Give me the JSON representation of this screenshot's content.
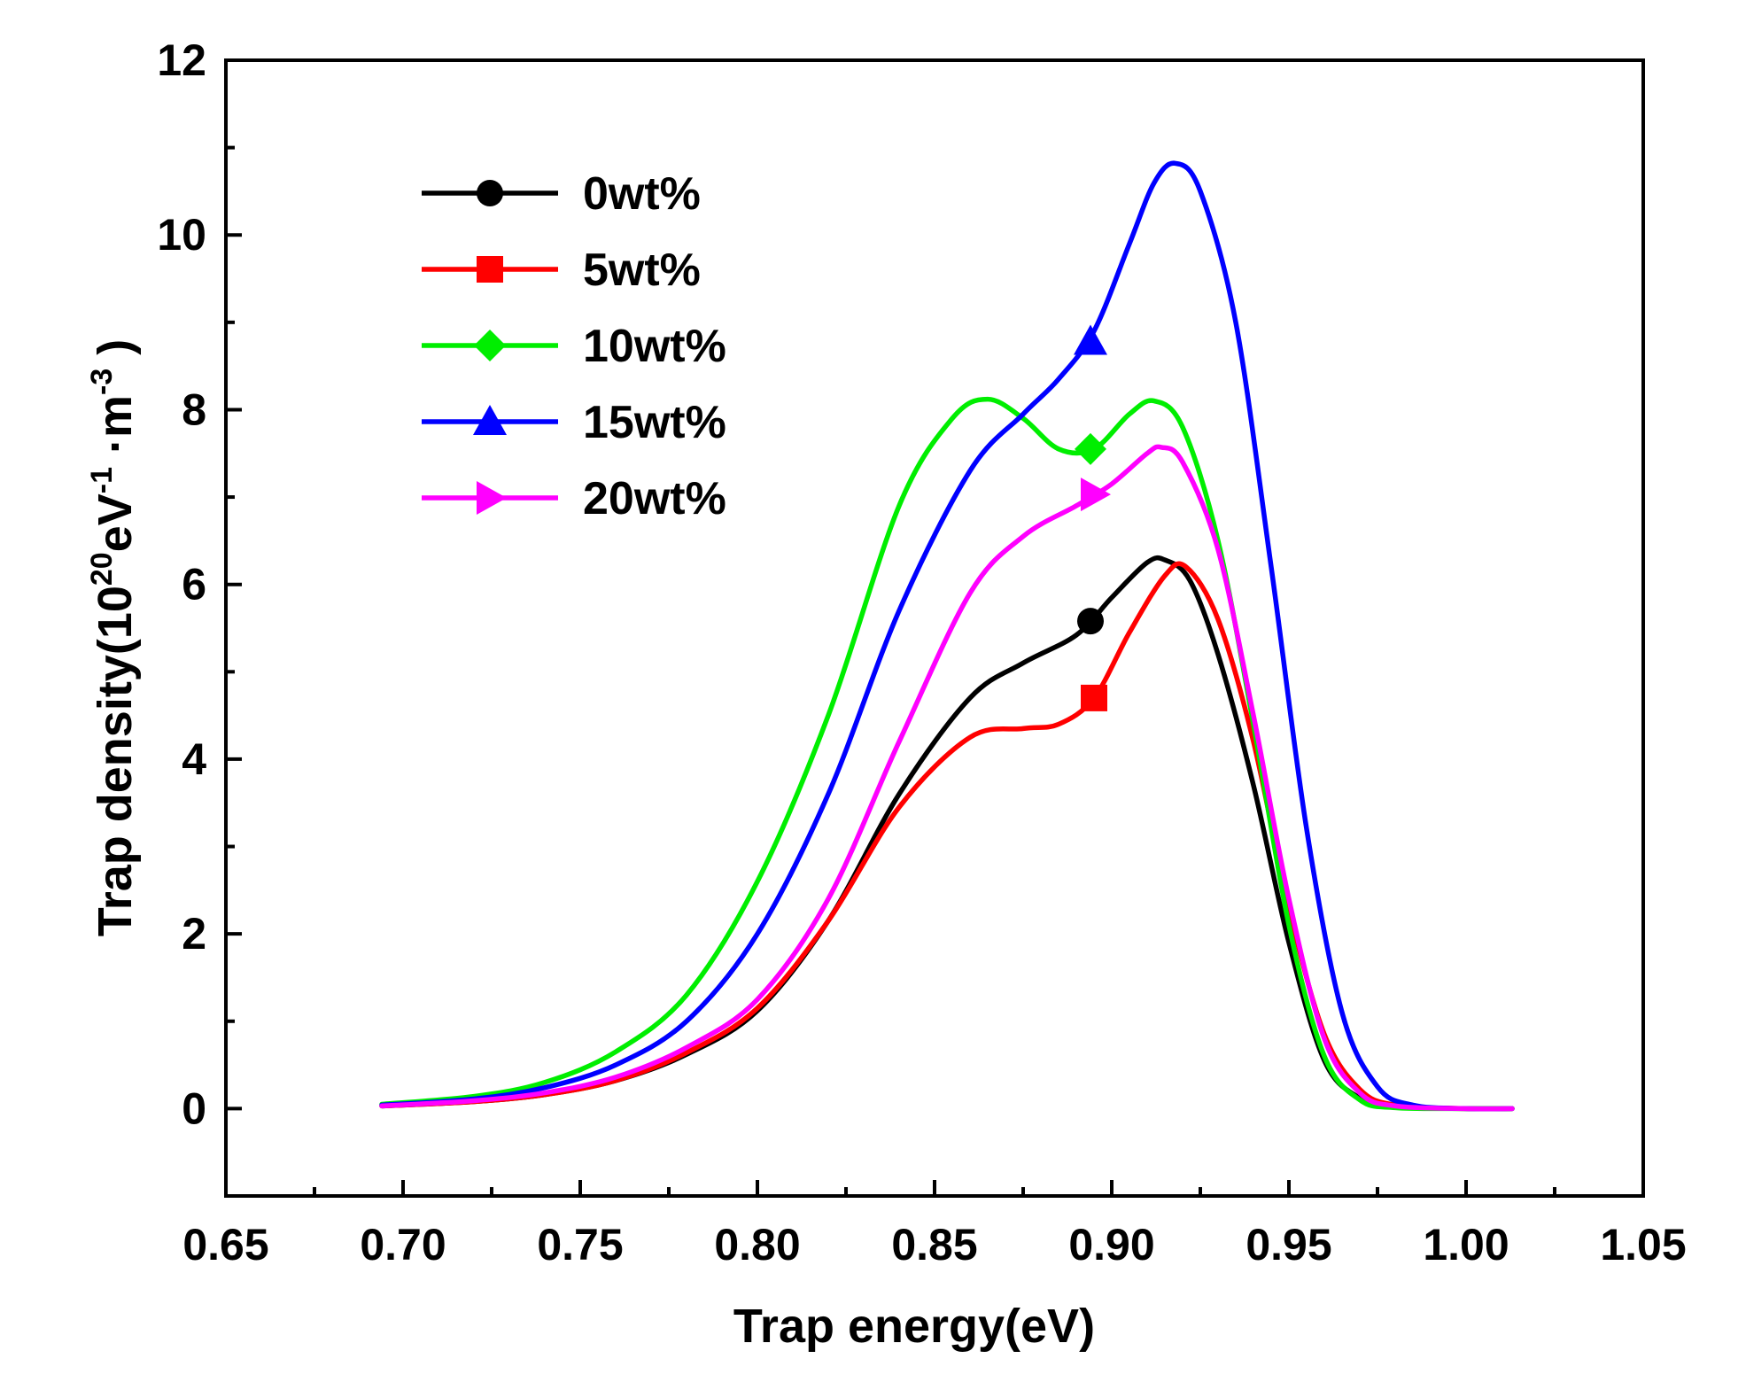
{
  "chart_data": {
    "type": "line",
    "xlabel": "Trap energy(eV)",
    "ylabel": {
      "prefix": "Trap density(10",
      "sup1": "20",
      "mid1": "eV",
      "sup2": "-1",
      "mid2": " ·m",
      "sup3": "-3",
      "suffix": " )"
    },
    "xlim": [
      0.65,
      1.05
    ],
    "ylim": [
      -1,
      12
    ],
    "x_ticks": [
      "0.65",
      "0.70",
      "0.75",
      "0.80",
      "0.85",
      "0.90",
      "0.95",
      "1.00",
      "1.05"
    ],
    "y_ticks": [
      "0",
      "2",
      "4",
      "6",
      "8",
      "10",
      "12"
    ],
    "legend_position": "top-left",
    "series": [
      {
        "name": "0wt%",
        "color": "#000000",
        "marker": "circle",
        "marker_at": [
          0.894,
          5.58
        ],
        "points": [
          [
            0.694,
            0.03
          ],
          [
            0.72,
            0.08
          ],
          [
            0.74,
            0.16
          ],
          [
            0.76,
            0.32
          ],
          [
            0.78,
            0.62
          ],
          [
            0.8,
            1.12
          ],
          [
            0.82,
            2.15
          ],
          [
            0.84,
            3.6
          ],
          [
            0.86,
            4.7
          ],
          [
            0.875,
            5.1
          ],
          [
            0.89,
            5.42
          ],
          [
            0.9,
            5.85
          ],
          [
            0.91,
            6.25
          ],
          [
            0.915,
            6.28
          ],
          [
            0.922,
            6.05
          ],
          [
            0.93,
            5.2
          ],
          [
            0.94,
            3.7
          ],
          [
            0.95,
            1.9
          ],
          [
            0.96,
            0.55
          ],
          [
            0.97,
            0.12
          ],
          [
            0.98,
            0.02
          ],
          [
            1.0,
            0.0
          ],
          [
            1.013,
            0.0
          ]
        ]
      },
      {
        "name": "5wt%",
        "color": "#ff0000",
        "marker": "square",
        "marker_at": [
          0.895,
          4.7
        ],
        "points": [
          [
            0.694,
            0.03
          ],
          [
            0.72,
            0.08
          ],
          [
            0.74,
            0.16
          ],
          [
            0.76,
            0.32
          ],
          [
            0.78,
            0.64
          ],
          [
            0.8,
            1.15
          ],
          [
            0.82,
            2.15
          ],
          [
            0.84,
            3.45
          ],
          [
            0.86,
            4.25
          ],
          [
            0.875,
            4.35
          ],
          [
            0.885,
            4.4
          ],
          [
            0.895,
            4.7
          ],
          [
            0.905,
            5.45
          ],
          [
            0.915,
            6.1
          ],
          [
            0.921,
            6.2
          ],
          [
            0.93,
            5.6
          ],
          [
            0.94,
            4.2
          ],
          [
            0.95,
            2.3
          ],
          [
            0.96,
            0.85
          ],
          [
            0.97,
            0.22
          ],
          [
            0.98,
            0.04
          ],
          [
            1.0,
            0.0
          ],
          [
            1.013,
            0.0
          ]
        ]
      },
      {
        "name": "10wt%",
        "color": "#00ee00",
        "marker": "diamond",
        "marker_at": [
          0.894,
          7.55
        ],
        "points": [
          [
            0.694,
            0.05
          ],
          [
            0.72,
            0.14
          ],
          [
            0.74,
            0.3
          ],
          [
            0.76,
            0.65
          ],
          [
            0.78,
            1.3
          ],
          [
            0.8,
            2.6
          ],
          [
            0.82,
            4.5
          ],
          [
            0.84,
            6.9
          ],
          [
            0.855,
            7.9
          ],
          [
            0.865,
            8.12
          ],
          [
            0.875,
            7.9
          ],
          [
            0.885,
            7.55
          ],
          [
            0.895,
            7.55
          ],
          [
            0.905,
            7.95
          ],
          [
            0.912,
            8.1
          ],
          [
            0.92,
            7.8
          ],
          [
            0.93,
            6.5
          ],
          [
            0.94,
            4.4
          ],
          [
            0.95,
            2.1
          ],
          [
            0.96,
            0.6
          ],
          [
            0.97,
            0.1
          ],
          [
            0.98,
            0.01
          ],
          [
            1.0,
            0.0
          ],
          [
            1.013,
            0.0
          ]
        ]
      },
      {
        "name": "15wt%",
        "color": "#0000ff",
        "marker": "triangle-up",
        "marker_at": [
          0.894,
          8.78
        ],
        "points": [
          [
            0.694,
            0.04
          ],
          [
            0.72,
            0.11
          ],
          [
            0.74,
            0.24
          ],
          [
            0.76,
            0.5
          ],
          [
            0.78,
            1.0
          ],
          [
            0.8,
            2.0
          ],
          [
            0.82,
            3.6
          ],
          [
            0.84,
            5.7
          ],
          [
            0.86,
            7.3
          ],
          [
            0.875,
            7.95
          ],
          [
            0.885,
            8.35
          ],
          [
            0.895,
            8.9
          ],
          [
            0.905,
            9.9
          ],
          [
            0.912,
            10.6
          ],
          [
            0.918,
            10.82
          ],
          [
            0.925,
            10.5
          ],
          [
            0.935,
            9.0
          ],
          [
            0.945,
            6.2
          ],
          [
            0.955,
            3.2
          ],
          [
            0.965,
            1.1
          ],
          [
            0.975,
            0.25
          ],
          [
            0.985,
            0.04
          ],
          [
            1.0,
            0.0
          ],
          [
            1.013,
            0.0
          ]
        ]
      },
      {
        "name": "20wt%",
        "color": "#ff00ff",
        "marker": "triangle-right",
        "marker_at": [
          0.895,
          7.03
        ],
        "points": [
          [
            0.694,
            0.03
          ],
          [
            0.72,
            0.09
          ],
          [
            0.74,
            0.18
          ],
          [
            0.76,
            0.36
          ],
          [
            0.78,
            0.7
          ],
          [
            0.8,
            1.25
          ],
          [
            0.82,
            2.4
          ],
          [
            0.84,
            4.2
          ],
          [
            0.86,
            5.9
          ],
          [
            0.875,
            6.55
          ],
          [
            0.89,
            6.9
          ],
          [
            0.9,
            7.15
          ],
          [
            0.91,
            7.5
          ],
          [
            0.914,
            7.57
          ],
          [
            0.92,
            7.4
          ],
          [
            0.93,
            6.4
          ],
          [
            0.94,
            4.5
          ],
          [
            0.95,
            2.4
          ],
          [
            0.96,
            0.8
          ],
          [
            0.97,
            0.18
          ],
          [
            0.98,
            0.03
          ],
          [
            1.0,
            0.0
          ],
          [
            1.013,
            0.0
          ]
        ]
      }
    ]
  }
}
